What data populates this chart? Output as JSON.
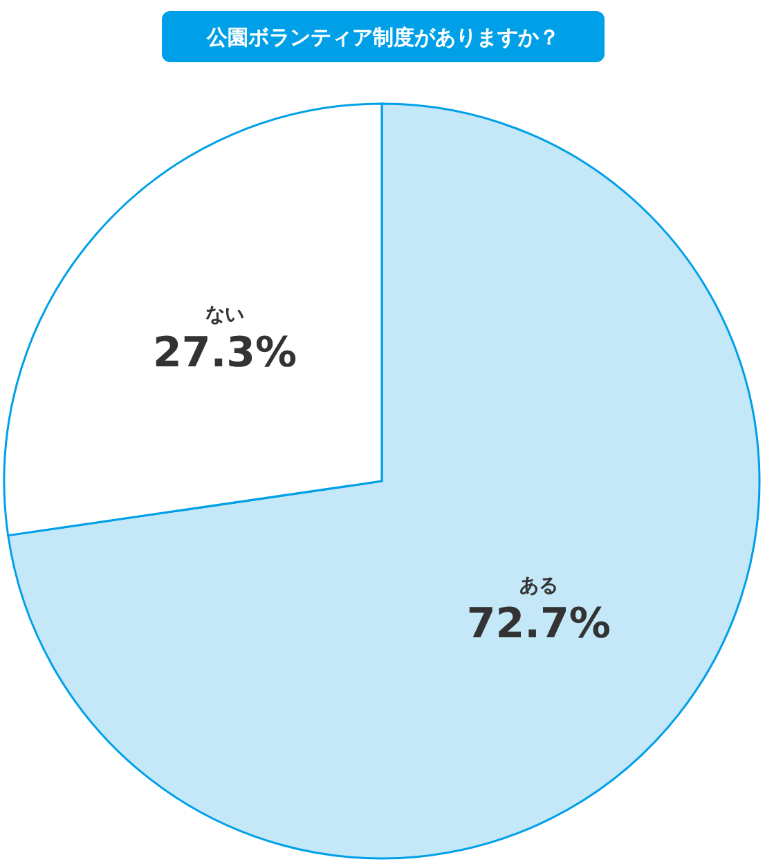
{
  "chart_data": {
    "type": "pie",
    "title": "公園ボランティア制度がありますか？",
    "categories": [
      "ある",
      "ない"
    ],
    "values": [
      72.7,
      27.3
    ],
    "colors": [
      "#c4e8f8",
      "#ffffff"
    ],
    "value_labels": [
      "72.7%",
      "27.3%"
    ]
  }
}
